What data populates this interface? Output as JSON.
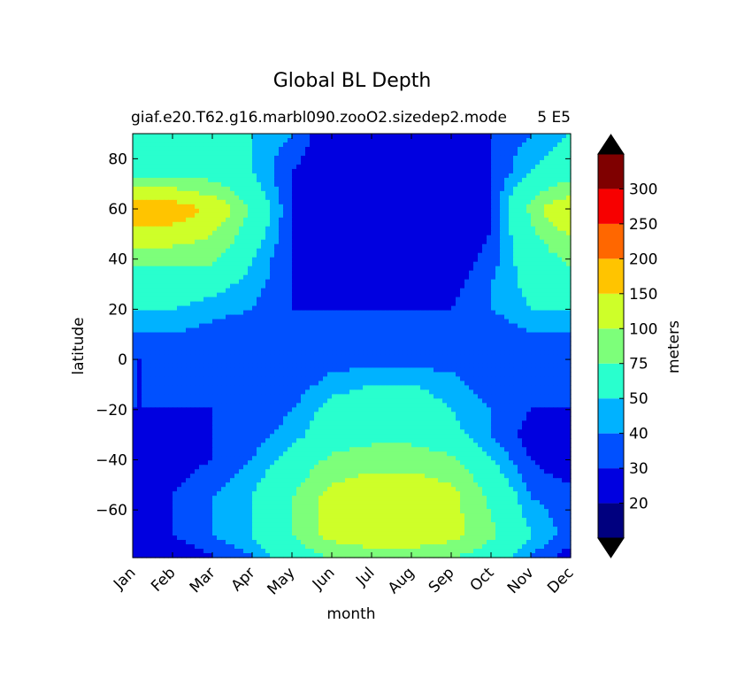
{
  "chart_data": {
    "type": "heatmap",
    "title": "Global BL Depth",
    "subtitle_left": "giaf.e20.T62.g16.marbl090.zooO2.sizedep2.mode",
    "subtitle_right": "5 E5",
    "xlabel": "month",
    "ylabel": "latitude",
    "x_categories": [
      "Jan",
      "Feb",
      "Mar",
      "Apr",
      "May",
      "Jun",
      "Jul",
      "Aug",
      "Sep",
      "Oct",
      "Nov",
      "Dec"
    ],
    "y_ticks": [
      80,
      60,
      40,
      20,
      0,
      -20,
      -40,
      -60
    ],
    "ylim": [
      -79,
      90
    ],
    "colorbar": {
      "label": "meters",
      "levels": [
        20,
        30,
        40,
        50,
        75,
        100,
        150,
        200,
        250,
        300
      ],
      "tick_labels": [
        "20",
        "30",
        "40",
        "50",
        "75",
        "100",
        "150",
        "200",
        "250",
        "300"
      ],
      "colors": [
        "#00007f",
        "#0000e0",
        "#0050ff",
        "#00b2ff",
        "#29ffce",
        "#7dff7a",
        "#ceff29",
        "#ffc400",
        "#ff6700",
        "#f70000",
        "#7f0000"
      ],
      "extend": "both"
    },
    "lat_profiles_by_month": [
      {
        "month": "Jan",
        "lat": [
          -78,
          -70,
          -55,
          -40,
          -30,
          -20,
          -5,
          0,
          10,
          20,
          30,
          40,
          50,
          60,
          65,
          75,
          90
        ],
        "depth": [
          20,
          25,
          30,
          25,
          20,
          30,
          30,
          30,
          40,
          50,
          60,
          80,
          120,
          200,
          120,
          60,
          50
        ]
      },
      {
        "month": "Feb",
        "lat": [
          -78,
          -70,
          -55,
          -40,
          -30,
          -20,
          -5,
          0,
          10,
          20,
          30,
          40,
          50,
          60,
          65,
          75,
          90
        ],
        "depth": [
          20,
          30,
          30,
          25,
          25,
          30,
          30,
          30,
          40,
          50,
          60,
          80,
          120,
          200,
          120,
          60,
          50
        ]
      },
      {
        "month": "Mar",
        "lat": [
          -78,
          -70,
          -55,
          -40,
          -30,
          -20,
          -5,
          0,
          10,
          20,
          30,
          40,
          50,
          60,
          65,
          75,
          90
        ],
        "depth": [
          30,
          40,
          40,
          30,
          30,
          30,
          30,
          30,
          35,
          45,
          55,
          80,
          100,
          130,
          100,
          60,
          50
        ]
      },
      {
        "month": "Apr",
        "lat": [
          -78,
          -70,
          -55,
          -40,
          -30,
          -20,
          -5,
          0,
          10,
          20,
          30,
          40,
          50,
          60,
          65,
          75,
          90
        ],
        "depth": [
          40,
          50,
          50,
          40,
          35,
          30,
          30,
          30,
          30,
          40,
          45,
          50,
          60,
          70,
          60,
          50,
          50
        ]
      },
      {
        "month": "May",
        "lat": [
          -78,
          -70,
          -55,
          -40,
          -30,
          -20,
          -5,
          0,
          10,
          20,
          30,
          40,
          50,
          60,
          65,
          75,
          90
        ],
        "depth": [
          60,
          75,
          75,
          55,
          45,
          40,
          30,
          30,
          30,
          30,
          30,
          30,
          30,
          30,
          30,
          30,
          40
        ]
      },
      {
        "month": "Jun",
        "lat": [
          -78,
          -70,
          -55,
          -40,
          -30,
          -20,
          -5,
          0,
          10,
          20,
          30,
          40,
          50,
          60,
          65,
          75,
          90
        ],
        "depth": [
          80,
          110,
          110,
          80,
          60,
          55,
          40,
          30,
          30,
          30,
          20,
          20,
          20,
          20,
          20,
          20,
          20
        ]
      },
      {
        "month": "Jul",
        "lat": [
          -78,
          -70,
          -55,
          -40,
          -30,
          -20,
          -5,
          0,
          10,
          20,
          30,
          40,
          50,
          60,
          65,
          75,
          90
        ],
        "depth": [
          90,
          120,
          120,
          90,
          65,
          60,
          45,
          30,
          30,
          30,
          20,
          20,
          20,
          20,
          20,
          20,
          20
        ]
      },
      {
        "month": "Aug",
        "lat": [
          -78,
          -70,
          -55,
          -40,
          -30,
          -20,
          -5,
          0,
          10,
          20,
          30,
          40,
          50,
          60,
          65,
          75,
          90
        ],
        "depth": [
          90,
          120,
          120,
          90,
          65,
          60,
          45,
          30,
          30,
          30,
          20,
          20,
          20,
          20,
          20,
          20,
          20
        ]
      },
      {
        "month": "Sep",
        "lat": [
          -78,
          -70,
          -55,
          -40,
          -30,
          -20,
          -5,
          0,
          10,
          20,
          30,
          40,
          50,
          60,
          65,
          75,
          90
        ],
        "depth": [
          80,
          110,
          110,
          80,
          55,
          50,
          40,
          30,
          30,
          30,
          25,
          20,
          20,
          20,
          20,
          25,
          25
        ]
      },
      {
        "month": "Oct",
        "lat": [
          -78,
          -70,
          -55,
          -40,
          -30,
          -20,
          -5,
          0,
          10,
          20,
          30,
          40,
          50,
          60,
          65,
          75,
          90
        ],
        "depth": [
          60,
          80,
          70,
          50,
          40,
          40,
          30,
          30,
          30,
          40,
          40,
          35,
          30,
          30,
          30,
          30,
          30
        ]
      },
      {
        "month": "Nov",
        "lat": [
          -78,
          -70,
          -55,
          -40,
          -30,
          -20,
          -5,
          0,
          10,
          20,
          30,
          40,
          50,
          60,
          65,
          75,
          90
        ],
        "depth": [
          40,
          50,
          40,
          30,
          25,
          30,
          30,
          30,
          40,
          50,
          55,
          60,
          70,
          80,
          70,
          50,
          40
        ]
      },
      {
        "month": "Dec",
        "lat": [
          -78,
          -70,
          -55,
          -40,
          -30,
          -20,
          -5,
          0,
          10,
          20,
          30,
          40,
          50,
          60,
          65,
          75,
          90
        ],
        "depth": [
          25,
          35,
          35,
          20,
          20,
          30,
          30,
          30,
          40,
          50,
          60,
          80,
          100,
          150,
          100,
          60,
          50
        ]
      }
    ],
    "grid": false
  }
}
